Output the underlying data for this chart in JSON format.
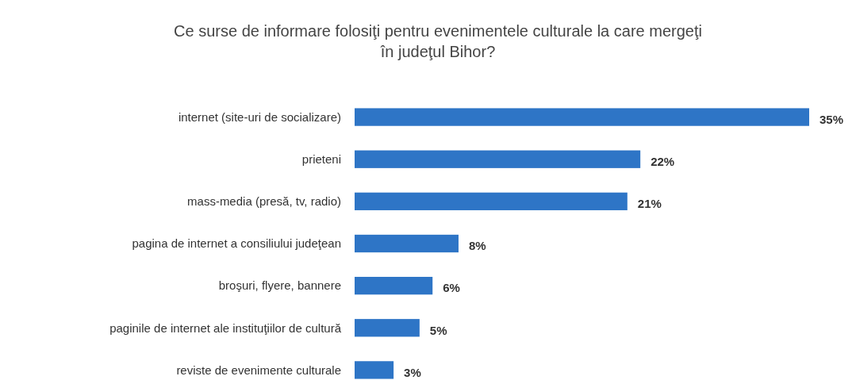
{
  "chart_data": {
    "type": "bar",
    "orientation": "horizontal",
    "title": "Ce surse de informare folosiţi pentru evenimentele culturale la care mergeţi în judeţul Bihor?",
    "categories": [
      "internet (site-uri de socializare)",
      "prieteni",
      "mass-media (presă, tv, radio)",
      "pagina de internet a consiliului judeţean",
      "broşuri, flyere, bannere",
      "paginile de internet ale instituţiilor de cultură",
      "reviste de evenimente culturale"
    ],
    "values": [
      35,
      22,
      21,
      8,
      6,
      5,
      3
    ],
    "value_labels": [
      "35%",
      "22%",
      "21%",
      "8%",
      "6%",
      "5%",
      "3%"
    ],
    "color": "#2e75c6"
  }
}
